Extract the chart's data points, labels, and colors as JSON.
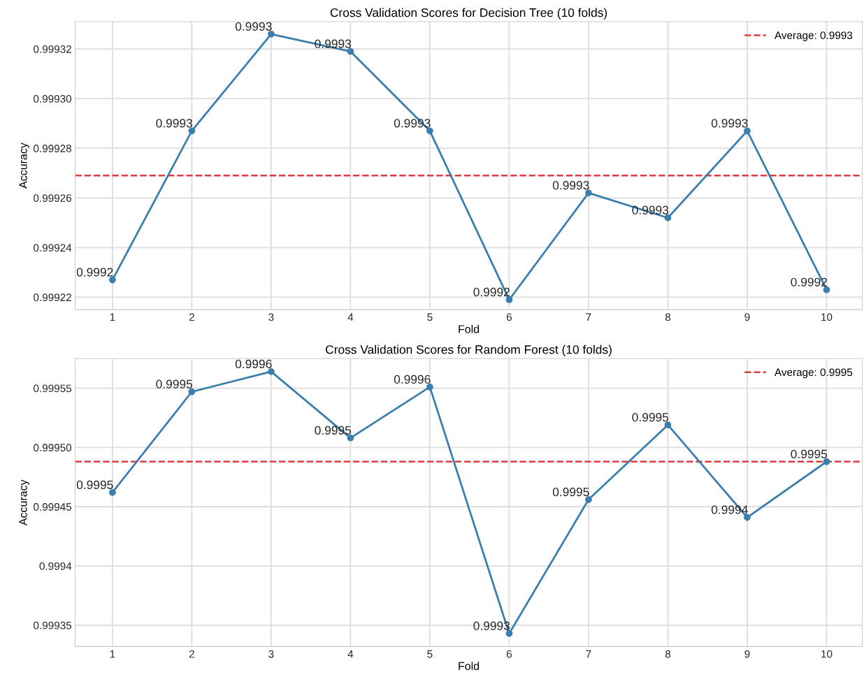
{
  "chart_data": [
    {
      "type": "line",
      "title": "Cross Validation Scores for Decision Tree (10 folds)",
      "xlabel": "Fold",
      "ylabel": "Accuracy",
      "x": [
        1,
        2,
        3,
        4,
        5,
        6,
        7,
        8,
        9,
        10
      ],
      "series": [
        {
          "color": "#3a7fad",
          "values": [
            0.999227,
            0.999287,
            0.999326,
            0.999319,
            0.999287,
            0.999219,
            0.999262,
            0.999252,
            0.999287,
            0.999223
          ],
          "value_labels": [
            "0.9992",
            "0.9993",
            "0.9993",
            "0.9993",
            "0.9993",
            "0.9992",
            "0.9993",
            "0.9993",
            "0.9993",
            "0.9992"
          ]
        }
      ],
      "marker": "circle",
      "line_style": "solid",
      "xlim": [
        0.53,
        10.45
      ],
      "xticks": [
        1,
        2,
        3,
        4,
        5,
        6,
        7,
        8,
        9,
        10
      ],
      "ylim": [
        0.999215,
        0.999331
      ],
      "yticks": [
        0.99922,
        0.99924,
        0.99926,
        0.99928,
        {
          "value": 0.9993,
          "label": "0.99930"
        },
        0.99932
      ],
      "ref_lines": [
        {
          "axis": "y",
          "value": 0.999269,
          "label": "Average: 0.9993",
          "color": "#e0393e",
          "line_style": "dashed"
        }
      ],
      "legend": "top right",
      "grid": true
    },
    {
      "type": "line",
      "title": "Cross Validation Scores for Random Forest (10 folds)",
      "xlabel": "Fold",
      "ylabel": "Accuracy",
      "x": [
        1,
        2,
        3,
        4,
        5,
        6,
        7,
        8,
        9,
        10
      ],
      "series": [
        {
          "color": "#3a7fad",
          "values": [
            0.999462,
            0.999547,
            0.999564,
            0.999508,
            0.999551,
            0.999343,
            0.999456,
            0.999519,
            0.999441,
            0.999488
          ],
          "value_labels": [
            "0.9995",
            "0.9995",
            "0.9996",
            "0.9995",
            "0.9996",
            "0.9993",
            "0.9995",
            "0.9995",
            "0.9994",
            "0.9995"
          ]
        }
      ],
      "marker": "circle",
      "line_style": "solid",
      "xlim": [
        0.53,
        10.45
      ],
      "xticks": [
        1,
        2,
        3,
        4,
        5,
        6,
        7,
        8,
        9,
        10
      ],
      "ylim": [
        0.999332,
        0.999575
      ],
      "yticks": [
        0.99935,
        0.9994,
        0.99945,
        {
          "value": 0.9995,
          "label": "0.99950"
        },
        0.99955
      ],
      "ref_lines": [
        {
          "axis": "y",
          "value": 0.999488,
          "label": "Average: 0.9995",
          "color": "#e0393e",
          "line_style": "dashed"
        }
      ],
      "legend": "top right",
      "grid": true
    }
  ]
}
